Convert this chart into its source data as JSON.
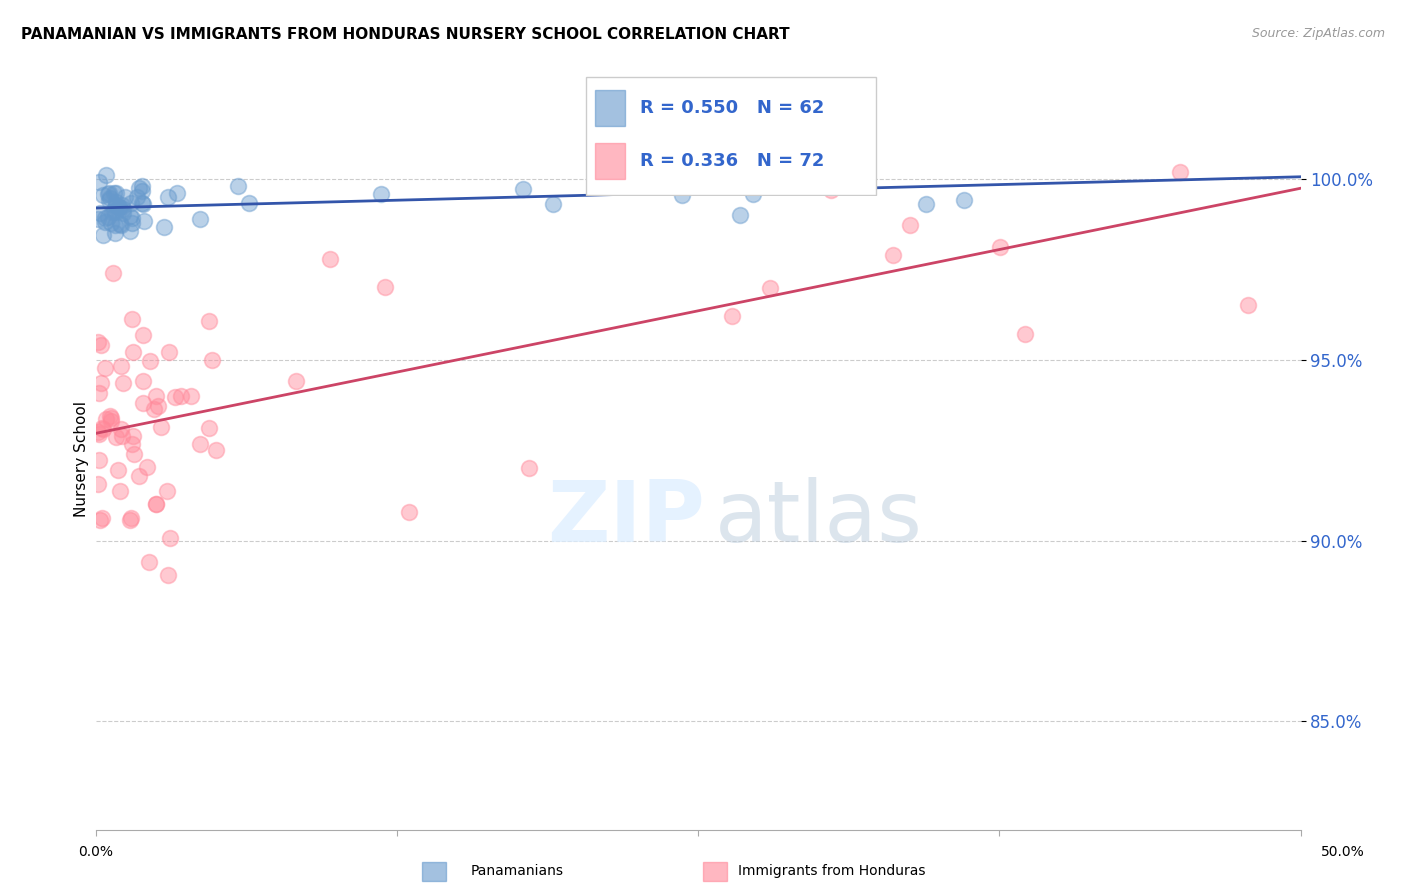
{
  "title": "PANAMANIAN VS IMMIGRANTS FROM HONDURAS NURSERY SCHOOL CORRELATION CHART",
  "source": "Source: ZipAtlas.com",
  "ylabel": "Nursery School",
  "xmin": 0.0,
  "xmax": 50.0,
  "ymin": 82.0,
  "ymax": 102.5,
  "yticks": [
    85.0,
    90.0,
    95.0,
    100.0
  ],
  "ytick_labels": [
    "85.0%",
    "90.0%",
    "95.0%",
    "100.0%"
  ],
  "blue_R": 0.55,
  "blue_N": 62,
  "pink_R": 0.336,
  "pink_N": 72,
  "blue_color": "#6699CC",
  "pink_color": "#FF8899",
  "blue_line_color": "#3355AA",
  "pink_line_color": "#CC4466",
  "legend_label_blue": "Panamanians",
  "legend_label_pink": "Immigrants from Honduras"
}
